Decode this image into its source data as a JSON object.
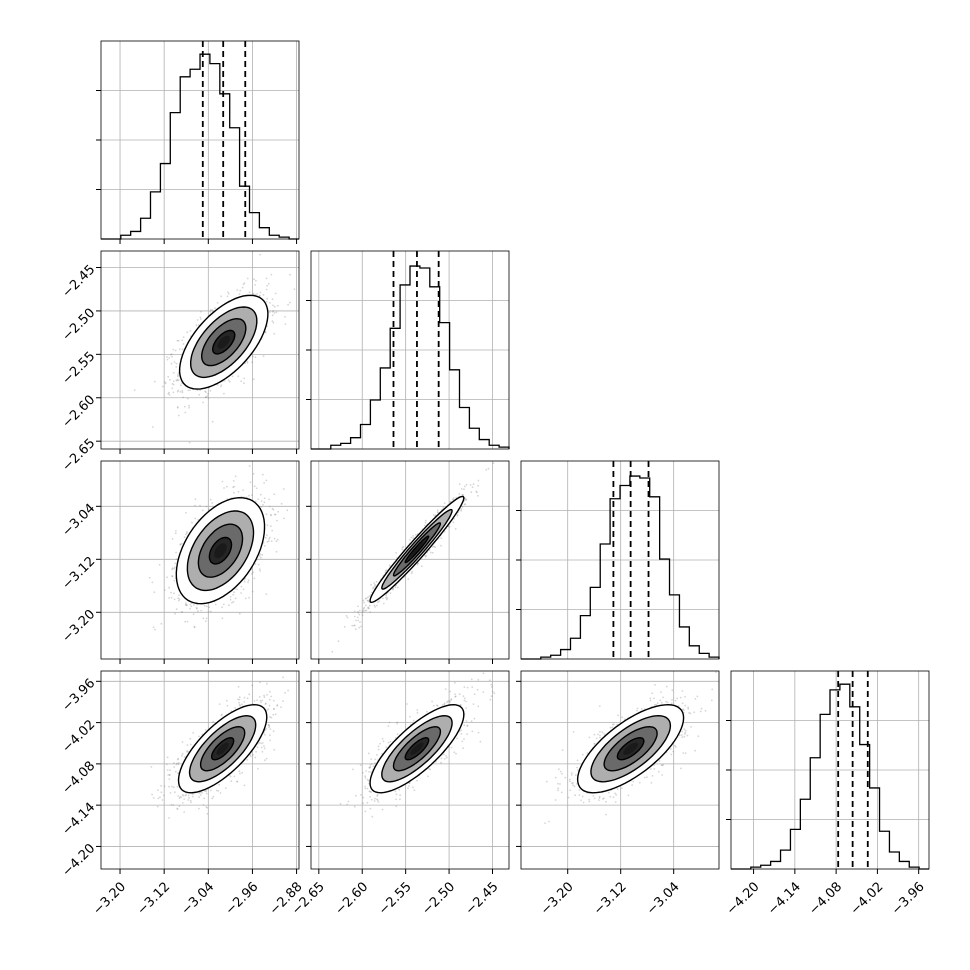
{
  "chart_data": {
    "type": "corner",
    "title": "",
    "grid": true,
    "parameters": [
      {
        "ticks": [
          -3.2,
          -3.12,
          -3.04,
          -2.96,
          -2.88
        ],
        "tick_labels": [
          "−3.20",
          "−3.12",
          "−3.04",
          "−2.96",
          "−2.88"
        ],
        "range": [
          -3.2345,
          -2.8756
        ],
        "quantiles": [
          -3.05,
          -3.013,
          -2.973
        ],
        "hist_bins": [
          -3.2345,
          -3.2166,
          -3.1986,
          -3.1807,
          -3.1627,
          -3.1448,
          -3.1268,
          -3.1089,
          -3.0909,
          -3.073,
          -3.055,
          -3.0371,
          -3.0191,
          -3.0012,
          -2.9833,
          -2.9653,
          -2.9474,
          -2.9294,
          -2.9115,
          -2.8935,
          -2.8756
        ],
        "hist_heights": [
          0.0,
          0.0,
          0.02,
          0.04,
          0.11,
          0.25,
          0.4,
          0.67,
          0.86,
          0.9,
          0.98,
          0.93,
          0.77,
          0.59,
          0.28,
          0.14,
          0.06,
          0.02,
          0.01,
          0.0
        ]
      },
      {
        "ticks": [
          -2.65,
          -2.6,
          -2.55,
          -2.5,
          -2.45
        ],
        "tick_labels": [
          "−2.65",
          "−2.60",
          "−2.55",
          "−2.50",
          "−2.45"
        ],
        "range": [
          -2.659,
          -2.431
        ],
        "quantiles": [
          -2.564,
          -2.537,
          -2.512
        ],
        "hist_bins": [
          -2.659,
          -2.6476,
          -2.6362,
          -2.6248,
          -2.6134,
          -2.602,
          -2.5906,
          -2.5792,
          -2.5678,
          -2.5564,
          -2.545,
          -2.5336,
          -2.5222,
          -2.5108,
          -2.4994,
          -2.488,
          -2.4766,
          -2.4652,
          -2.4538,
          -2.4424,
          -2.431
        ],
        "hist_heights": [
          0.0,
          0.0,
          0.02,
          0.03,
          0.06,
          0.13,
          0.26,
          0.43,
          0.64,
          0.87,
          0.97,
          0.96,
          0.86,
          0.67,
          0.42,
          0.22,
          0.11,
          0.05,
          0.02,
          0.01
        ]
      },
      {
        "ticks": [
          -3.2,
          -3.12,
          -3.04
        ],
        "tick_labels": [
          "−3.20",
          "−3.12",
          "−3.04"
        ],
        "range": [
          -3.2705,
          -2.9716
        ],
        "quantiles": [
          -3.131,
          -3.105,
          -3.078
        ],
        "hist_bins": [
          -3.2705,
          -3.2556,
          -3.2406,
          -3.2257,
          -3.2107,
          -3.1958,
          -3.1808,
          -3.1659,
          -3.1509,
          -3.136,
          -3.121,
          -3.1061,
          -3.0911,
          -3.0762,
          -3.0612,
          -3.0463,
          -3.0313,
          -3.0164,
          -3.0014,
          -2.9865,
          -2.9716
        ],
        "hist_heights": [
          0.0,
          0.0,
          0.01,
          0.02,
          0.05,
          0.11,
          0.23,
          0.38,
          0.61,
          0.85,
          0.92,
          0.97,
          0.96,
          0.86,
          0.53,
          0.34,
          0.17,
          0.07,
          0.03,
          0.01
        ]
      },
      {
        "ticks": [
          -4.2,
          -4.14,
          -4.08,
          -4.02,
          -3.96
        ],
        "tick_labels": [
          "−4.20",
          "−4.14",
          "−4.08",
          "−4.02",
          "−3.96"
        ],
        "range": [
          -4.2328,
          -3.945
        ],
        "quantiles": [
          -4.077,
          -4.056,
          -4.034
        ],
        "hist_bins": [
          -4.2328,
          -4.2184,
          -4.204,
          -4.1896,
          -4.1752,
          -4.1608,
          -4.1464,
          -4.132,
          -4.1176,
          -4.1032,
          -4.0889,
          -4.0745,
          -4.0601,
          -4.0457,
          -4.0313,
          -4.0169,
          -4.0025,
          -3.9881,
          -3.9737,
          -3.9594,
          -3.945
        ],
        "hist_heights": [
          0.0,
          0.0,
          0.01,
          0.02,
          0.04,
          0.1,
          0.21,
          0.37,
          0.59,
          0.82,
          0.95,
          0.98,
          0.86,
          0.66,
          0.43,
          0.2,
          0.09,
          0.04,
          0.01,
          0.0
        ]
      }
    ],
    "pairs": [
      {
        "x": 0,
        "y": 1,
        "center": [
          -3.012,
          -2.536
        ],
        "sx": 0.04,
        "sy": 0.027,
        "rho": 0.6
      },
      {
        "x": 0,
        "y": 2,
        "center": [
          -3.018,
          -3.107
        ],
        "sx": 0.04,
        "sy": 0.04,
        "rho": 0.45
      },
      {
        "x": 1,
        "y": 2,
        "center": [
          -2.537,
          -3.105
        ],
        "sx": 0.027,
        "sy": 0.04,
        "rho": 0.97
      },
      {
        "x": 0,
        "y": 3,
        "center": [
          -3.014,
          -4.058
        ],
        "sx": 0.04,
        "sy": 0.032,
        "rho": 0.72
      },
      {
        "x": 1,
        "y": 3,
        "center": [
          -2.537,
          -4.058
        ],
        "sx": 0.027,
        "sy": 0.032,
        "rho": 0.78
      },
      {
        "x": 2,
        "y": 3,
        "center": [
          -3.105,
          -4.058
        ],
        "sx": 0.04,
        "sy": 0.032,
        "rho": 0.7
      }
    ],
    "contour_levels_sigma": [
      0.5,
      1.0,
      1.5,
      2.0
    ],
    "colors": {
      "line": "#000000",
      "grid": "#b0b0b0",
      "points": "#8a8a8a",
      "density": [
        "#d6d6d6",
        "#a0a0a0",
        "#5e5e5e",
        "#1a1a1a"
      ]
    }
  }
}
